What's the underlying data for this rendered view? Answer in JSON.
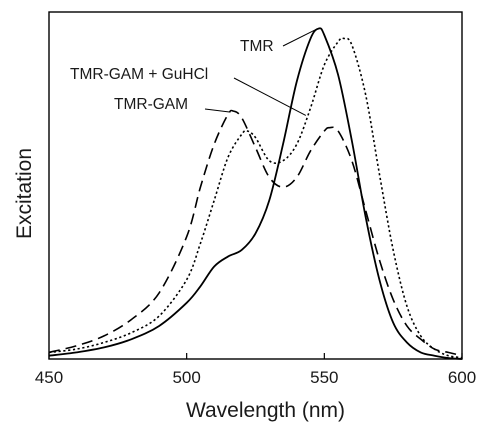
{
  "chart_data": {
    "type": "line",
    "title": "",
    "xlabel": "Wavelength (nm)",
    "ylabel": "Excitation",
    "xlim": [
      450,
      600
    ],
    "ylim": [
      0,
      1.05
    ],
    "x_ticks": [
      450,
      500,
      550,
      600
    ],
    "y_ticks": [],
    "grid": false,
    "legend": "none (curves labeled directly)",
    "series": [
      {
        "name": "TMR",
        "style": "solid",
        "color": "#000000",
        "x": [
          450,
          460,
          470,
          480,
          490,
          500,
          505,
          510,
          515,
          520,
          525,
          530,
          535,
          540,
          545,
          548,
          550,
          555,
          560,
          565,
          570,
          575,
          580,
          585,
          590,
          595,
          600
        ],
        "y": [
          0.01,
          0.02,
          0.035,
          0.06,
          0.1,
          0.17,
          0.22,
          0.28,
          0.31,
          0.33,
          0.38,
          0.48,
          0.65,
          0.84,
          0.97,
          1.0,
          0.98,
          0.86,
          0.66,
          0.43,
          0.24,
          0.11,
          0.05,
          0.02,
          0.01,
          0.003,
          0.0
        ]
      },
      {
        "name": "TMR-GAM + GuHCl",
        "style": "dotted",
        "color": "#000000",
        "x": [
          450,
          460,
          470,
          480,
          490,
          500,
          505,
          510,
          515,
          520,
          522,
          525,
          530,
          535,
          540,
          545,
          550,
          555,
          557,
          560,
          565,
          570,
          575,
          580,
          585,
          590,
          595,
          600
        ],
        "y": [
          0.02,
          0.03,
          0.05,
          0.08,
          0.13,
          0.24,
          0.35,
          0.48,
          0.61,
          0.68,
          0.69,
          0.67,
          0.6,
          0.6,
          0.65,
          0.76,
          0.89,
          0.96,
          0.97,
          0.95,
          0.8,
          0.56,
          0.33,
          0.16,
          0.07,
          0.03,
          0.01,
          0.004
        ]
      },
      {
        "name": "TMR-GAM",
        "style": "dashed",
        "color": "#000000",
        "x": [
          450,
          460,
          470,
          480,
          490,
          500,
          505,
          510,
          515,
          517,
          520,
          525,
          530,
          535,
          540,
          545,
          550,
          552,
          555,
          560,
          565,
          570,
          575,
          580,
          585,
          590,
          595,
          600
        ],
        "y": [
          0.02,
          0.04,
          0.07,
          0.12,
          0.2,
          0.37,
          0.52,
          0.65,
          0.74,
          0.75,
          0.73,
          0.64,
          0.55,
          0.52,
          0.55,
          0.63,
          0.69,
          0.7,
          0.69,
          0.6,
          0.45,
          0.3,
          0.18,
          0.1,
          0.06,
          0.03,
          0.02,
          0.01
        ]
      }
    ],
    "annotations": [
      {
        "text": "TMR",
        "target": "TMR",
        "x": 548,
        "y": 1.0
      },
      {
        "text": "TMR-GAM + GuHCl",
        "target": "TMR-GAM + GuHCl",
        "x": 544,
        "y": 0.74
      },
      {
        "text": "TMR-GAM",
        "target": "TMR-GAM",
        "x": 517,
        "y": 0.75
      }
    ]
  }
}
